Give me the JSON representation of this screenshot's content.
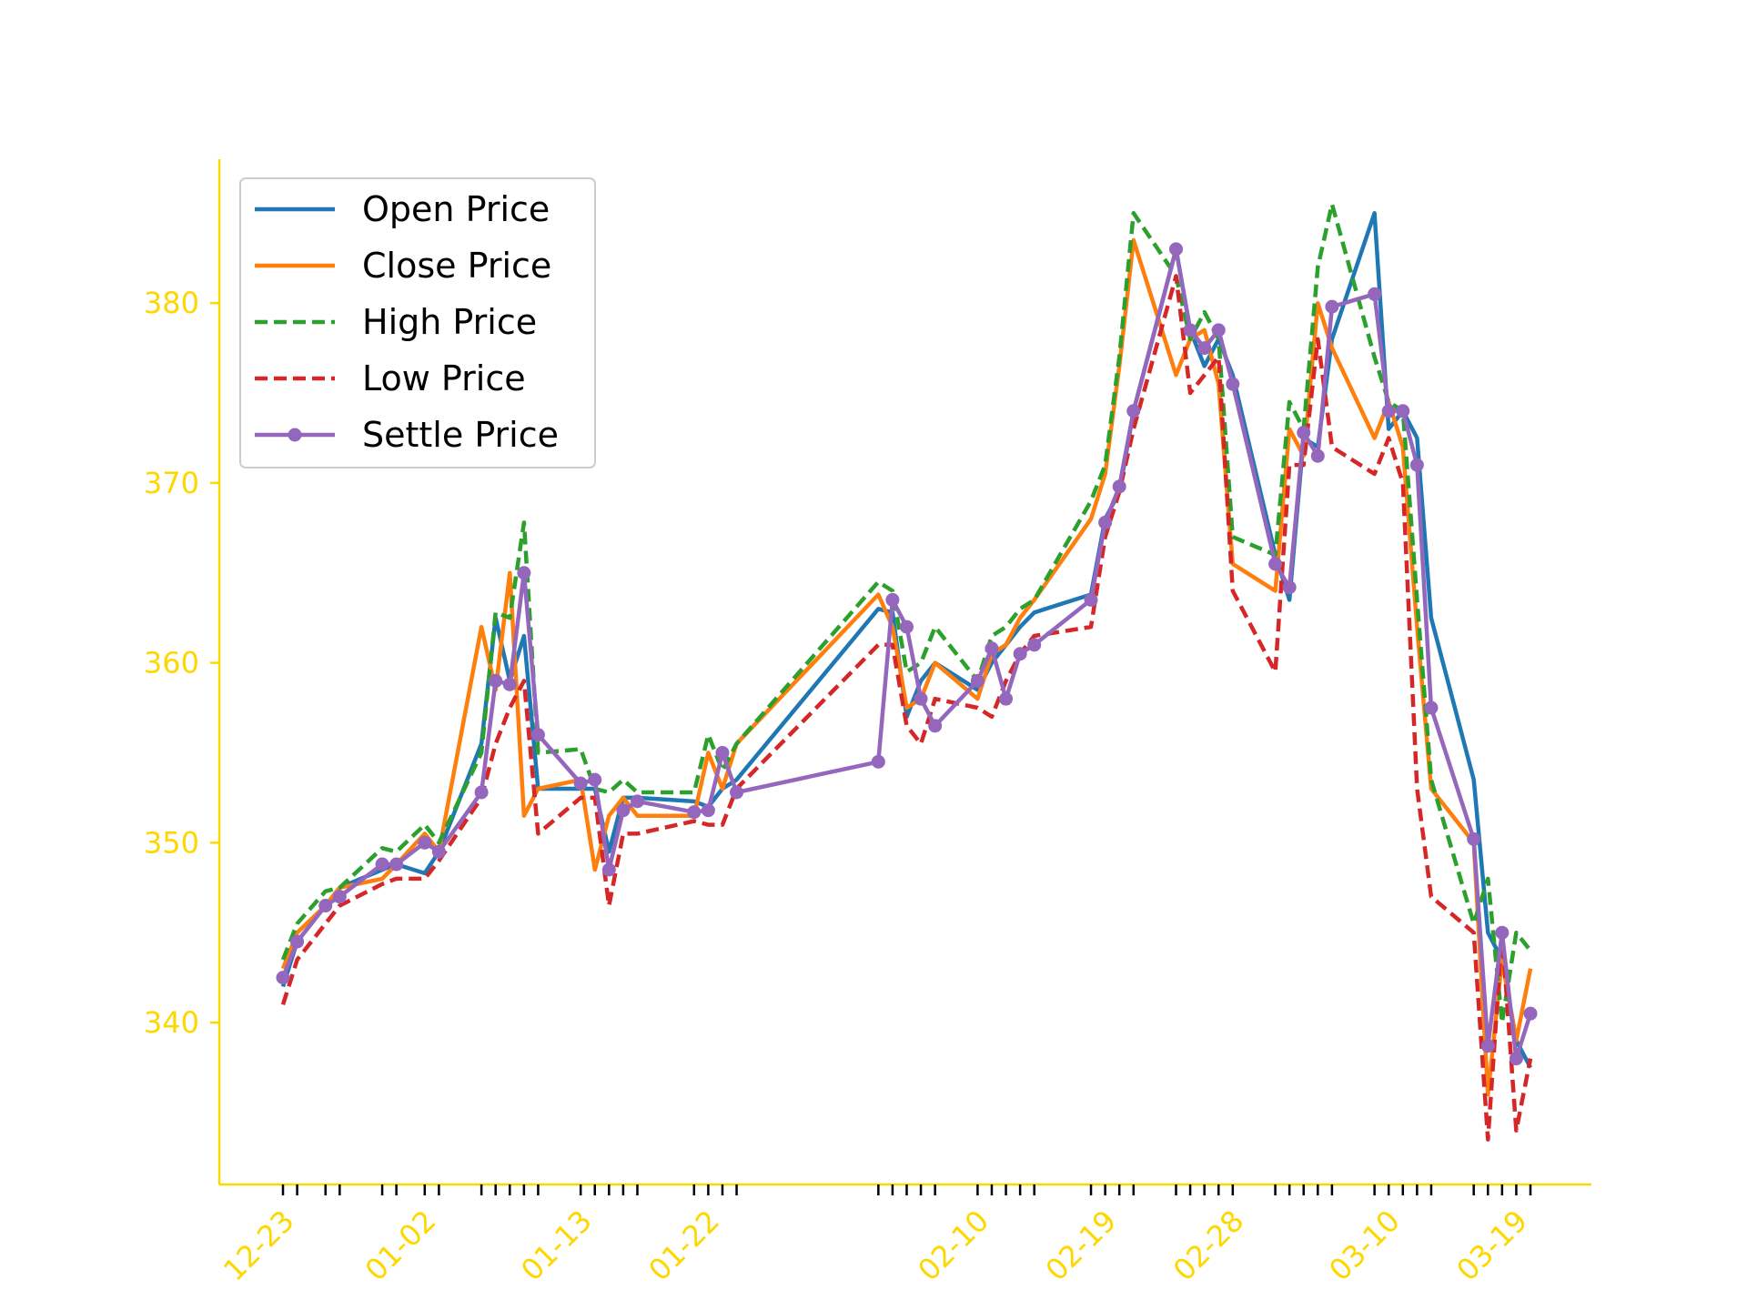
{
  "chart_data": {
    "type": "line",
    "title": "",
    "xlabel": "",
    "ylabel": "",
    "ylim": [
      331,
      388
    ],
    "yticks": [
      340,
      350,
      360,
      370,
      380
    ],
    "xtick_labels": [
      {
        "date": "2019-12-23",
        "label": "12-23"
      },
      {
        "date": "2020-01-02",
        "label": "01-02"
      },
      {
        "date": "2020-01-13",
        "label": "01-13"
      },
      {
        "date": "2020-01-22",
        "label": "01-22"
      },
      {
        "date": "2020-02-10",
        "label": "02-10"
      },
      {
        "date": "2020-02-19",
        "label": "02-19"
      },
      {
        "date": "2020-02-28",
        "label": "02-28"
      },
      {
        "date": "2020-03-10",
        "label": "03-10"
      },
      {
        "date": "2020-03-19",
        "label": "03-19"
      }
    ],
    "axis_color": "#FFD700",
    "grid": false,
    "legend_position": "upper left",
    "dates": [
      "2019-12-23",
      "2019-12-24",
      "2019-12-26",
      "2019-12-27",
      "2019-12-30",
      "2019-12-31",
      "2020-01-02",
      "2020-01-03",
      "2020-01-06",
      "2020-01-07",
      "2020-01-08",
      "2020-01-09",
      "2020-01-10",
      "2020-01-13",
      "2020-01-14",
      "2020-01-15",
      "2020-01-16",
      "2020-01-17",
      "2020-01-21",
      "2020-01-22",
      "2020-01-23",
      "2020-01-24",
      "2020-02-03",
      "2020-02-04",
      "2020-02-05",
      "2020-02-06",
      "2020-02-07",
      "2020-02-10",
      "2020-02-11",
      "2020-02-12",
      "2020-02-13",
      "2020-02-14",
      "2020-02-18",
      "2020-02-19",
      "2020-02-20",
      "2020-02-21",
      "2020-02-24",
      "2020-02-25",
      "2020-02-26",
      "2020-02-27",
      "2020-02-28",
      "2020-03-02",
      "2020-03-03",
      "2020-03-04",
      "2020-03-05",
      "2020-03-06",
      "2020-03-09",
      "2020-03-10",
      "2020-03-11",
      "2020-03-12",
      "2020-03-13",
      "2020-03-16",
      "2020-03-17",
      "2020-03-18",
      "2020-03-19",
      "2020-03-20"
    ],
    "series": [
      {
        "name": "Open Price",
        "color": "#1f77b4",
        "dash": "solid",
        "marker": false,
        "values": [
          342.0,
          344.5,
          346.5,
          347.5,
          348.5,
          348.8,
          348.3,
          349.5,
          355.5,
          362.5,
          359.0,
          361.5,
          353.0,
          353.0,
          353.0,
          349.5,
          352.5,
          352.5,
          352.3,
          352.0,
          353.0,
          353.5,
          363.0,
          362.8,
          357.0,
          359.0,
          360.0,
          358.5,
          360.0,
          361.0,
          362.0,
          362.8,
          363.8,
          368.0,
          369.5,
          374.0,
          383.0,
          378.5,
          376.5,
          378.0,
          376.0,
          366.0,
          363.5,
          372.5,
          372.0,
          378.0,
          385.0,
          373.0,
          374.0,
          372.5,
          362.5,
          353.5,
          345.0,
          343.5,
          339.0,
          337.5
        ]
      },
      {
        "name": "Close Price",
        "color": "#ff7f0e",
        "dash": "solid",
        "marker": false,
        "values": [
          343.0,
          345.0,
          346.5,
          347.5,
          348.0,
          348.8,
          350.5,
          349.5,
          362.0,
          358.5,
          365.0,
          351.5,
          353.0,
          353.5,
          348.5,
          351.5,
          352.5,
          351.5,
          351.5,
          355.0,
          353.0,
          355.5,
          363.8,
          362.0,
          357.5,
          358.0,
          360.0,
          358.0,
          360.5,
          361.0,
          362.5,
          363.5,
          368.0,
          370.5,
          376.5,
          383.5,
          376.0,
          378.0,
          378.5,
          375.5,
          365.5,
          364.0,
          373.0,
          371.5,
          380.0,
          377.5,
          372.5,
          374.5,
          372.0,
          362.0,
          353.0,
          350.0,
          336.0,
          343.5,
          339.0,
          343.0
        ]
      },
      {
        "name": "High Price",
        "color": "#2ca02c",
        "dash": "dashed",
        "marker": false,
        "values": [
          343.5,
          345.5,
          347.3,
          347.5,
          349.7,
          349.5,
          351.0,
          350.0,
          355.0,
          362.8,
          362.5,
          367.8,
          355.0,
          355.2,
          353.0,
          352.8,
          353.5,
          352.8,
          352.8,
          356.0,
          354.0,
          355.5,
          364.5,
          364.0,
          359.5,
          360.0,
          362.0,
          359.0,
          361.5,
          362.0,
          363.0,
          363.5,
          369.0,
          371.0,
          377.0,
          385.0,
          381.5,
          378.0,
          379.5,
          378.0,
          367.0,
          366.0,
          374.5,
          373.0,
          382.0,
          385.5,
          377.0,
          374.5,
          374.0,
          363.5,
          353.5,
          345.5,
          348.0,
          340.0,
          345.0,
          344.0
        ]
      },
      {
        "name": "Low Price",
        "color": "#d62728",
        "dash": "dashed",
        "marker": false,
        "values": [
          341.0,
          343.5,
          345.5,
          346.5,
          347.7,
          348.0,
          348.0,
          349.0,
          352.5,
          355.5,
          357.5,
          359.0,
          350.5,
          352.5,
          352.5,
          346.5,
          350.5,
          350.5,
          351.2,
          351.0,
          351.0,
          353.0,
          361.0,
          361.0,
          356.5,
          355.5,
          358.0,
          357.5,
          357.0,
          359.0,
          360.5,
          361.5,
          362.0,
          367.0,
          369.5,
          373.0,
          381.5,
          375.0,
          376.0,
          377.0,
          364.0,
          359.5,
          371.0,
          371.0,
          378.0,
          372.0,
          370.5,
          372.5,
          370.0,
          353.0,
          347.0,
          345.0,
          333.5,
          345.0,
          334.0,
          338.0
        ]
      },
      {
        "name": "Settle Price",
        "color": "#9467bd",
        "dash": "solid",
        "marker": true,
        "values": [
          342.5,
          344.5,
          346.5,
          347.0,
          348.8,
          348.8,
          350.0,
          349.5,
          352.8,
          359.0,
          358.8,
          365.0,
          356.0,
          353.3,
          353.5,
          348.5,
          351.8,
          352.3,
          351.7,
          351.8,
          355.0,
          352.8,
          354.5,
          363.5,
          362.0,
          358.0,
          356.5,
          359.0,
          360.8,
          358.0,
          360.5,
          361.0,
          363.5,
          367.8,
          369.8,
          374.0,
          383.0,
          378.5,
          377.5,
          378.5,
          375.5,
          365.5,
          364.2,
          372.8,
          371.5,
          379.8,
          380.5,
          374.0,
          374.0,
          371.0,
          357.5,
          350.2,
          338.7,
          345.0,
          338.0,
          340.5
        ]
      }
    ]
  }
}
